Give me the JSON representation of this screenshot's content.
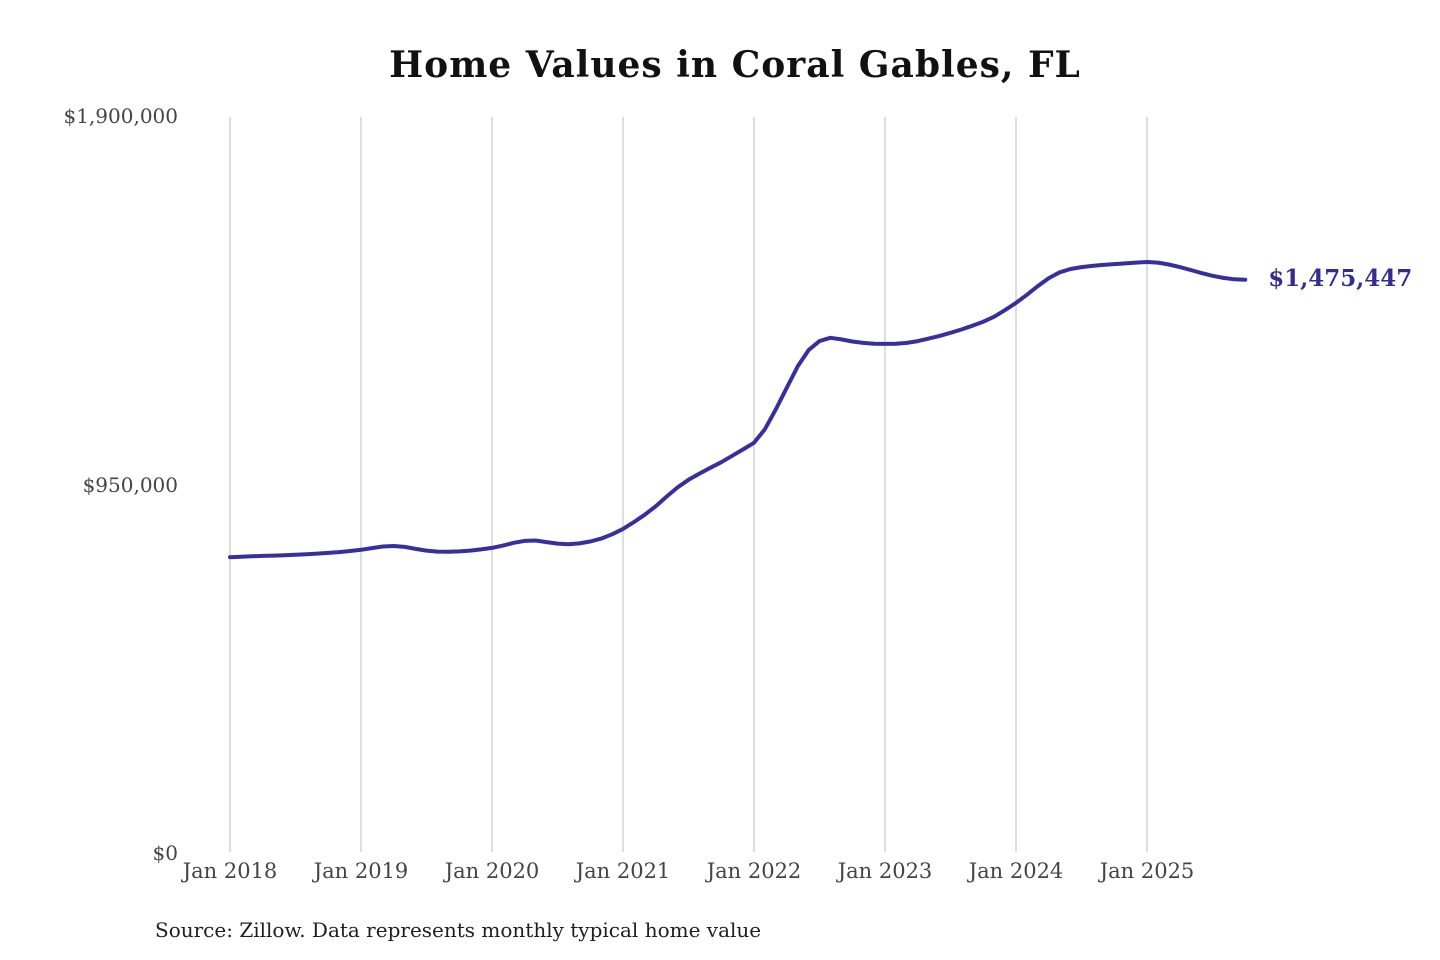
{
  "chart_data": {
    "type": "line",
    "title": "Home Values in Coral Gables, FL",
    "source": "Source: Zillow. Data represents monthly typical home value",
    "end_label": "$1,475,447",
    "end_value": 1475447,
    "line_color": "#372f9e",
    "grid_color": "#cccccc",
    "label_color": "#332c92",
    "xlabel": "",
    "ylabel": "",
    "ylim": [
      0,
      1900000
    ],
    "grid": "vertical-only",
    "legend": "none",
    "y_ticks": [
      {
        "label": "$1,900,000",
        "value": 1900000
      },
      {
        "label": "$950,000",
        "value": 950000
      },
      {
        "label": "$0",
        "value": 0
      }
    ],
    "x_ticks": [
      {
        "label": "Jan 2018",
        "month_index": 0
      },
      {
        "label": "Jan 2019",
        "month_index": 12
      },
      {
        "label": "Jan 2020",
        "month_index": 24
      },
      {
        "label": "Jan 2021",
        "month_index": 36
      },
      {
        "label": "Jan 2022",
        "month_index": 48
      },
      {
        "label": "Jan 2023",
        "month_index": 60
      },
      {
        "label": "Jan 2024",
        "month_index": 72
      },
      {
        "label": "Jan 2025",
        "month_index": 84
      }
    ],
    "x": [
      "2018-01",
      "2018-02",
      "2018-03",
      "2018-04",
      "2018-05",
      "2018-06",
      "2018-07",
      "2018-08",
      "2018-09",
      "2018-10",
      "2018-11",
      "2018-12",
      "2019-01",
      "2019-02",
      "2019-03",
      "2019-04",
      "2019-05",
      "2019-06",
      "2019-07",
      "2019-08",
      "2019-09",
      "2019-10",
      "2019-11",
      "2019-12",
      "2020-01",
      "2020-02",
      "2020-03",
      "2020-04",
      "2020-05",
      "2020-06",
      "2020-07",
      "2020-08",
      "2020-09",
      "2020-10",
      "2020-11",
      "2020-12",
      "2021-01",
      "2021-02",
      "2021-03",
      "2021-04",
      "2021-05",
      "2021-06",
      "2021-07",
      "2021-08",
      "2021-09",
      "2021-10",
      "2021-11",
      "2021-12",
      "2022-01",
      "2022-02",
      "2022-03",
      "2022-04",
      "2022-05",
      "2022-06",
      "2022-07",
      "2022-08",
      "2022-09",
      "2022-10",
      "2022-11",
      "2022-12",
      "2023-01",
      "2023-02",
      "2023-03",
      "2023-04",
      "2023-05",
      "2023-06",
      "2023-07",
      "2023-08",
      "2023-09",
      "2023-10",
      "2023-11",
      "2023-12",
      "2024-01",
      "2024-02",
      "2024-03",
      "2024-04",
      "2024-05",
      "2024-06",
      "2024-07",
      "2024-08",
      "2024-09",
      "2024-10",
      "2024-11",
      "2024-12",
      "2025-01",
      "2025-02",
      "2025-03",
      "2025-04",
      "2025-05",
      "2025-06",
      "2025-07",
      "2025-08",
      "2025-09",
      "2025-10"
    ],
    "values": [
      760000,
      761200,
      762300,
      763300,
      764200,
      765200,
      766400,
      767800,
      769300,
      771000,
      773200,
      776000,
      779000,
      783500,
      787500,
      789000,
      786500,
      781500,
      777000,
      774500,
      774000,
      775000,
      777000,
      780000,
      784000,
      790000,
      797000,
      802000,
      803000,
      799000,
      795000,
      793500,
      795500,
      800500,
      808000,
      819000,
      833000,
      850500,
      869500,
      891500,
      916500,
      940000,
      959500,
      975500,
      990500,
      1005000,
      1021500,
      1038000,
      1055000,
      1090000,
      1141000,
      1197000,
      1252000,
      1294000,
      1317000,
      1325500,
      1321500,
      1316000,
      1312500,
      1310500,
      1310000,
      1310500,
      1312500,
      1317000,
      1323500,
      1330500,
      1338500,
      1347000,
      1356500,
      1367000,
      1380000,
      1397000,
      1415500,
      1436500,
      1459000,
      1479500,
      1494500,
      1503000,
      1508000,
      1511000,
      1513500,
      1515500,
      1517500,
      1519500,
      1521000,
      1519500,
      1514500,
      1508000,
      1500500,
      1492500,
      1485500,
      1480000,
      1476500,
      1475447
    ]
  }
}
